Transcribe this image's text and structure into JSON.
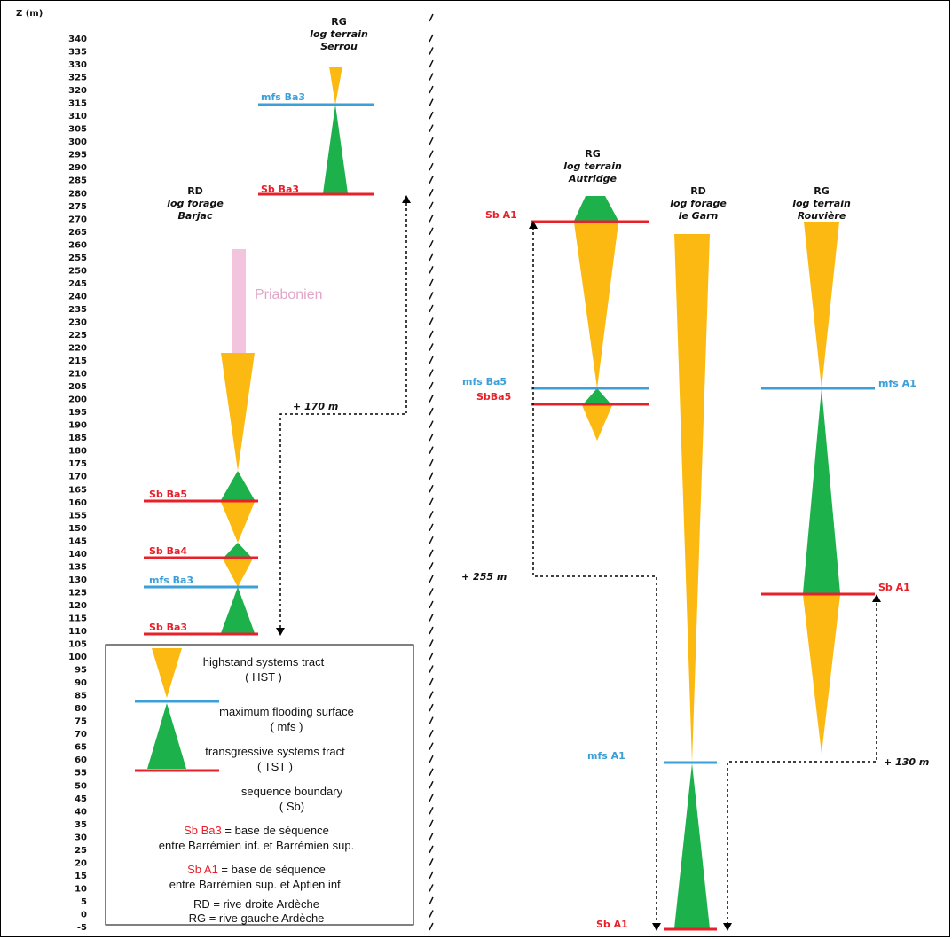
{
  "axis": {
    "title": "Z (m)",
    "ticks": [
      340,
      335,
      330,
      325,
      320,
      315,
      310,
      305,
      300,
      295,
      290,
      285,
      280,
      275,
      270,
      265,
      260,
      255,
      250,
      245,
      240,
      235,
      230,
      225,
      220,
      215,
      210,
      205,
      200,
      195,
      190,
      185,
      180,
      175,
      170,
      165,
      160,
      155,
      150,
      145,
      140,
      135,
      130,
      125,
      120,
      115,
      110,
      105,
      100,
      95,
      90,
      85,
      80,
      75,
      70,
      65,
      60,
      55,
      50,
      45,
      40,
      35,
      30,
      25,
      20,
      15,
      10,
      5,
      0,
      -5
    ]
  },
  "colors": {
    "hst": "#fbb912",
    "tst": "#1db14c",
    "sb": "#e8202a",
    "mfs": "#3b9fd8",
    "priabonien": "#f2c4de",
    "dash": "#000000"
  },
  "logs": {
    "serrou": {
      "side": "RG",
      "type": "log terrain",
      "name": "Serrou"
    },
    "barjac": {
      "side": "RD",
      "type": "log forage",
      "name": "Barjac"
    },
    "autridge": {
      "side": "RG",
      "type": "log terrain",
      "name": "Autridge"
    },
    "garn": {
      "side": "RD",
      "type": "log forage",
      "name": "le Garn"
    },
    "rouviere": {
      "side": "RG",
      "type": "log terrain",
      "name": "Rouvière"
    }
  },
  "labels": {
    "serrou_mfs": "mfs Ba3",
    "serrou_sb": "Sb Ba3",
    "barjac_sb5": "Sb Ba5",
    "barjac_sb4": "Sb Ba4",
    "barjac_mfs": "mfs Ba3",
    "barjac_sb3": "Sb Ba3",
    "priabonien": "Priabonien",
    "autridge_sb": "Sb A1",
    "autridge_mfs": "mfs Ba5",
    "autridge_sb5": "SbBa5",
    "rouviere_mfs": "mfs A1",
    "rouviere_sb": "Sb A1",
    "garn_mfs": "mfs A1",
    "garn_sb": "Sb A1"
  },
  "shifts": {
    "s170": "+ 170 m",
    "s255": "+ 255 m",
    "s130": "+ 130 m"
  },
  "legend": {
    "hst1": "highstand systems tract",
    "hst2": "( HST )",
    "mfs1": "maximum flooding surface",
    "mfs2": "( mfs )",
    "tst1": "transgressive systems tract",
    "tst2": "( TST )",
    "sb1": "sequence boundary",
    "sb2": "( Sb)",
    "ba3_red": "Sb Ba3",
    "ba3_rest": " = base de séquence",
    "ba3_line2": "entre Barrémien inf. et Barrémien sup.",
    "a1_red": "Sb A1",
    "a1_rest": " = base de séquence",
    "a1_line2": "entre Barrémien sup. et Aptien inf.",
    "rd": "RD = rive droite Ardèche",
    "rg": "RG = rive gauche Ardèche"
  }
}
